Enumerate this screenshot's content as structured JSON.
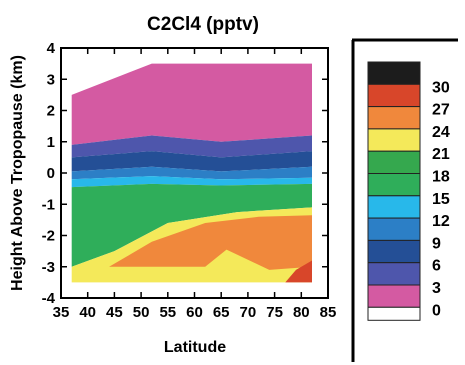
{
  "chart_data": {
    "type": "heatmap",
    "title": "C2Cl4 (pptv)",
    "xlabel": "Latitude",
    "ylabel": "Height Above Tropopause (km)",
    "xlim": [
      35,
      85
    ],
    "ylim": [
      -4,
      4
    ],
    "x_ticks": [
      "35",
      "40",
      "45",
      "50",
      "55",
      "60",
      "65",
      "70",
      "75",
      "80",
      "85"
    ],
    "y_ticks": [
      "-4",
      "-3",
      "-2",
      "-1",
      "0",
      "1",
      "2",
      "3",
      "4"
    ],
    "grid": false,
    "legend_position": "right",
    "data_extent": {
      "lat": [
        37,
        82
      ],
      "height": [
        -3.5,
        3.5
      ]
    },
    "legend": [
      {
        "label": "",
        "color": "#1c1c1c"
      },
      {
        "label": "30",
        "color": "#d8462a"
      },
      {
        "label": "27",
        "color": "#f0883c"
      },
      {
        "label": "24",
        "color": "#f4e95a"
      },
      {
        "label": "21",
        "color": "#35a84e"
      },
      {
        "label": "18",
        "color": "#2fae5a"
      },
      {
        "label": "15",
        "color": "#28b8ea"
      },
      {
        "label": "12",
        "color": "#2c7fc6"
      },
      {
        "label": "9",
        "color": "#244f96"
      },
      {
        "label": "6",
        "color": "#4e56ac"
      },
      {
        "label": "3",
        "color": "#d45aa2"
      },
      {
        "label": "0",
        "color": "#ffffff"
      }
    ],
    "contour_bands": [
      {
        "level": "3-6",
        "color": "#d45aa2",
        "upper": [
          [
            37,
            2.5
          ],
          [
            52,
            3.5
          ],
          [
            82,
            3.5
          ]
        ],
        "lower": [
          [
            37,
            0.9
          ],
          [
            52,
            1.2
          ],
          [
            65,
            1.0
          ],
          [
            82,
            1.2
          ]
        ]
      },
      {
        "level": "6-9",
        "color": "#4e56ac",
        "upper": [
          [
            37,
            0.9
          ],
          [
            52,
            1.2
          ],
          [
            65,
            1.0
          ],
          [
            82,
            1.2
          ]
        ],
        "lower": [
          [
            37,
            0.5
          ],
          [
            52,
            0.7
          ],
          [
            65,
            0.5
          ],
          [
            82,
            0.7
          ]
        ]
      },
      {
        "level": "9-12",
        "color": "#244f96",
        "upper": [
          [
            37,
            0.5
          ],
          [
            52,
            0.7
          ],
          [
            65,
            0.5
          ],
          [
            82,
            0.7
          ]
        ],
        "lower": [
          [
            37,
            0.05
          ],
          [
            52,
            0.2
          ],
          [
            65,
            0.05
          ],
          [
            82,
            0.2
          ]
        ]
      },
      {
        "level": "12-15",
        "color": "#2c7fc6",
        "upper": [
          [
            37,
            0.05
          ],
          [
            52,
            0.2
          ],
          [
            65,
            0.05
          ],
          [
            82,
            0.2
          ]
        ],
        "lower": [
          [
            37,
            -0.2
          ],
          [
            52,
            -0.1
          ],
          [
            65,
            -0.2
          ],
          [
            82,
            -0.15
          ]
        ]
      },
      {
        "level": "15-18",
        "color": "#28b8ea",
        "upper": [
          [
            37,
            -0.2
          ],
          [
            52,
            -0.1
          ],
          [
            65,
            -0.2
          ],
          [
            82,
            -0.15
          ]
        ],
        "lower": [
          [
            37,
            -0.45
          ],
          [
            52,
            -0.35
          ],
          [
            65,
            -0.4
          ],
          [
            82,
            -0.35
          ]
        ]
      },
      {
        "level": "18-21",
        "color": "#2fae5a",
        "upper": [
          [
            37,
            -0.45
          ],
          [
            52,
            -0.35
          ],
          [
            65,
            -0.4
          ],
          [
            82,
            -0.35
          ]
        ],
        "lower": [
          [
            37,
            -3.0
          ],
          [
            45,
            -2.5
          ],
          [
            55,
            -1.6
          ],
          [
            68,
            -1.25
          ],
          [
            82,
            -1.1
          ]
        ]
      },
      {
        "level": "21-24",
        "color": "#f4e95a",
        "upper": [
          [
            37,
            -3.0
          ],
          [
            45,
            -2.5
          ],
          [
            55,
            -1.6
          ],
          [
            68,
            -1.25
          ],
          [
            82,
            -1.1
          ]
        ],
        "lower": [
          [
            37,
            -3.5
          ],
          [
            82,
            -3.5
          ]
        ]
      },
      {
        "level": "24-27",
        "color": "#f0883c",
        "upper": [
          [
            44,
            -3.0
          ],
          [
            52,
            -2.2
          ],
          [
            62,
            -1.6
          ],
          [
            72,
            -1.4
          ],
          [
            82,
            -1.35
          ]
        ],
        "lower": [
          [
            44,
            -3.0
          ],
          [
            62,
            -3.0
          ],
          [
            66,
            -2.45
          ],
          [
            74,
            -3.1
          ],
          [
            82,
            -3.0
          ]
        ]
      },
      {
        "level": "27-30",
        "color": "#d8462a",
        "upper": [
          [
            77,
            -3.5
          ],
          [
            79,
            -3.1
          ],
          [
            82,
            -2.8
          ]
        ],
        "lower": [
          [
            77,
            -3.5
          ],
          [
            82,
            -3.5
          ]
        ]
      }
    ]
  }
}
